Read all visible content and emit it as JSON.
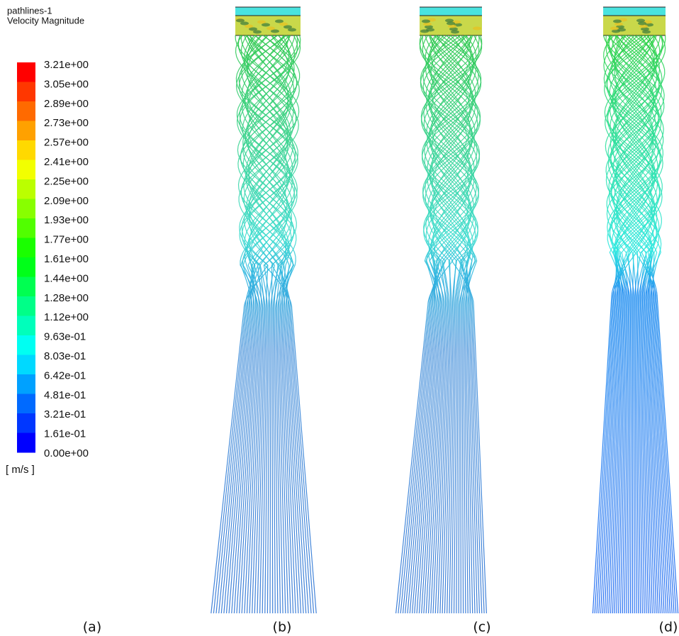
{
  "legend": {
    "title": "pathlines-1",
    "subtitle": "Velocity Magnitude",
    "labels": [
      "3.21e+00",
      "3.05e+00",
      "2.89e+00",
      "2.73e+00",
      "2.57e+00",
      "2.41e+00",
      "2.25e+00",
      "2.09e+00",
      "1.93e+00",
      "1.77e+00",
      "1.61e+00",
      "1.44e+00",
      "1.28e+00",
      "1.12e+00",
      "9.63e-01",
      "8.03e-01",
      "6.42e-01",
      "4.81e-01",
      "3.21e-01",
      "1.61e-01",
      "0.00e+00"
    ],
    "colors": [
      "hsl(0,100%,50%)",
      "hsl(13,100%,50%)",
      "hsl(25,100%,50%)",
      "hsl(38,100%,50%)",
      "hsl(51,100%,50%)",
      "hsl(63,100%,50%)",
      "hsl(76,100%,50%)",
      "hsl(88,100%,50%)",
      "hsl(101,100%,50%)",
      "hsl(114,100%,50%)",
      "hsl(126,100%,50%)",
      "hsl(139,100%,50%)",
      "hsl(152,100%,50%)",
      "hsl(164,100%,50%)",
      "hsl(177,100%,50%)",
      "hsl(189,100%,50%)",
      "hsl(202,100%,50%)",
      "hsl(215,100%,50%)",
      "hsl(227,100%,50%)",
      "hsl(240,100%,50%)"
    ],
    "unit": "[ m/s ]"
  },
  "panels": [
    "(a)",
    "(b)",
    "(c)",
    "(d)"
  ]
}
